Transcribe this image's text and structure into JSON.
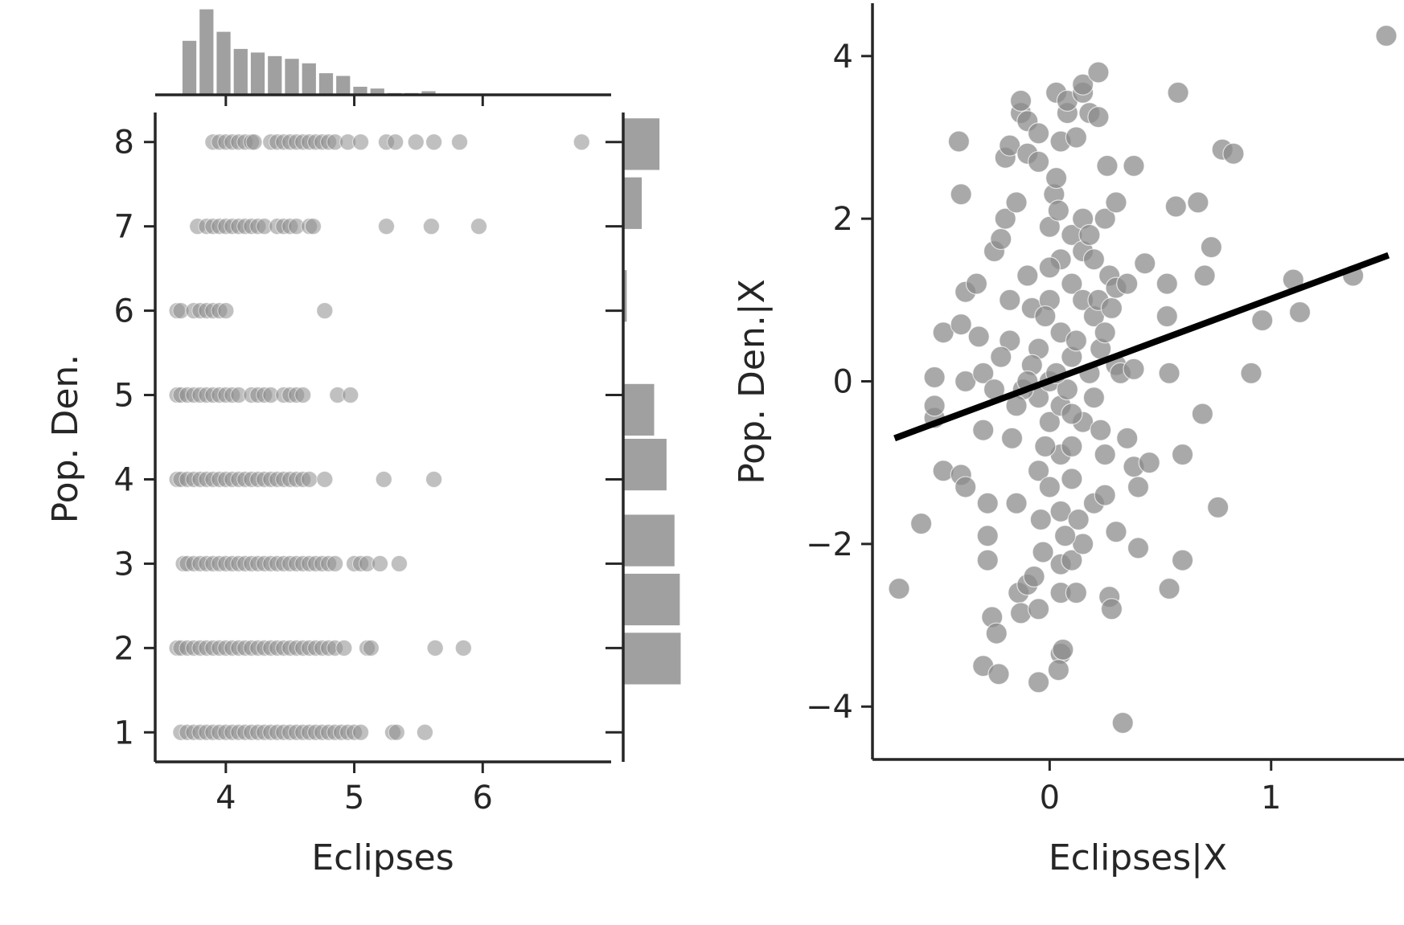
{
  "chart_data": [
    {
      "type": "scatter",
      "name": "joint-scatter",
      "xlabel": "Eclipses",
      "ylabel": "Pop. Den.",
      "xlim": [
        3.45,
        7.0
      ],
      "ylim": [
        0.65,
        8.35
      ],
      "xticks": [
        4,
        5,
        6
      ],
      "yticks": [
        1,
        2,
        3,
        4,
        5,
        6,
        7,
        8
      ],
      "point_color": "#8c8c8c",
      "rows": [
        {
          "y": 8,
          "x": [
            3.9,
            3.95,
            4.0,
            4.05,
            4.1,
            4.15,
            4.2,
            4.22,
            4.35,
            4.4,
            4.45,
            4.5,
            4.55,
            4.6,
            4.65,
            4.7,
            4.75,
            4.8,
            4.85,
            4.95,
            5.05,
            5.25,
            5.32,
            5.48,
            5.62,
            5.82,
            6.77
          ]
        },
        {
          "y": 7,
          "x": [
            3.78,
            3.85,
            3.9,
            3.95,
            4.0,
            4.05,
            4.1,
            4.15,
            4.2,
            4.25,
            4.3,
            4.4,
            4.45,
            4.5,
            4.55,
            4.65,
            4.68,
            5.25,
            5.6,
            5.97
          ]
        },
        {
          "y": 6,
          "x": [
            3.62,
            3.65,
            3.75,
            3.8,
            3.85,
            3.9,
            3.95,
            4.0,
            4.77
          ]
        },
        {
          "y": 5,
          "x": [
            3.62,
            3.65,
            3.7,
            3.75,
            3.8,
            3.85,
            3.9,
            3.95,
            4.0,
            4.05,
            4.1,
            4.2,
            4.25,
            4.3,
            4.35,
            4.45,
            4.5,
            4.55,
            4.6,
            4.87,
            4.97
          ]
        },
        {
          "y": 4,
          "x": [
            3.62,
            3.65,
            3.7,
            3.75,
            3.8,
            3.85,
            3.9,
            3.95,
            4.0,
            4.05,
            4.1,
            4.15,
            4.2,
            4.25,
            4.3,
            4.35,
            4.4,
            4.45,
            4.5,
            4.55,
            4.6,
            4.65,
            4.77,
            5.23,
            5.62
          ]
        },
        {
          "y": 3,
          "x": [
            3.67,
            3.7,
            3.75,
            3.8,
            3.85,
            3.9,
            3.95,
            4.0,
            4.05,
            4.1,
            4.15,
            4.2,
            4.25,
            4.3,
            4.35,
            4.4,
            4.45,
            4.5,
            4.55,
            4.6,
            4.65,
            4.7,
            4.75,
            4.8,
            4.85,
            5.0,
            5.05,
            5.1,
            5.2,
            5.35
          ]
        },
        {
          "y": 2,
          "x": [
            3.62,
            3.65,
            3.7,
            3.75,
            3.8,
            3.85,
            3.9,
            3.95,
            4.0,
            4.05,
            4.1,
            4.15,
            4.2,
            4.25,
            4.3,
            4.35,
            4.4,
            4.45,
            4.5,
            4.55,
            4.6,
            4.65,
            4.7,
            4.75,
            4.8,
            4.85,
            4.92,
            5.1,
            5.13,
            5.63,
            5.85
          ]
        },
        {
          "y": 1,
          "x": [
            3.65,
            3.7,
            3.75,
            3.8,
            3.85,
            3.9,
            3.95,
            4.0,
            4.05,
            4.1,
            4.15,
            4.2,
            4.25,
            4.3,
            4.35,
            4.4,
            4.45,
            4.5,
            4.55,
            4.6,
            4.65,
            4.7,
            4.75,
            4.8,
            4.85,
            4.9,
            4.95,
            5.0,
            5.05,
            5.3,
            5.33,
            5.55
          ]
        }
      ]
    },
    {
      "type": "bar",
      "name": "marginal-x-histogram",
      "orientation": "vertical",
      "bin_start": 3.65,
      "bin_width": 0.133,
      "counts": [
        60,
        95,
        70,
        51,
        47,
        43,
        40,
        35,
        24,
        21,
        9,
        7,
        2,
        2,
        4
      ],
      "color": "#a0a0a0"
    },
    {
      "type": "bar",
      "name": "marginal-y-histogram",
      "orientation": "horizontal",
      "bins": [
        {
          "from": 7.65,
          "to": 8.3,
          "count": 41
        },
        {
          "from": 6.95,
          "to": 7.6,
          "count": 21
        },
        {
          "from": 5.85,
          "to": 6.5,
          "count": 4
        },
        {
          "from": 4.5,
          "to": 5.15,
          "count": 35
        },
        {
          "from": 3.85,
          "to": 4.5,
          "count": 49
        },
        {
          "from": 2.95,
          "to": 3.6,
          "count": 58
        },
        {
          "from": 2.25,
          "to": 2.9,
          "count": 64
        },
        {
          "from": 1.55,
          "to": 2.2,
          "count": 65
        }
      ],
      "color": "#a0a0a0"
    },
    {
      "type": "scatter",
      "name": "partial-regression",
      "xlabel": "Eclipses|X",
      "ylabel": "Pop. Den.|X",
      "xlim": [
        -0.8,
        1.6
      ],
      "ylim": [
        -4.65,
        4.65
      ],
      "xticks": [
        0,
        1
      ],
      "yticks": [
        -4,
        -2,
        0,
        2,
        4
      ],
      "point_color": "#8c8c8c",
      "points": [
        [
          -0.68,
          -2.55
        ],
        [
          -0.58,
          -1.75
        ],
        [
          -0.48,
          -1.1
        ],
        [
          -0.52,
          -0.45
        ],
        [
          -0.52,
          -0.3
        ],
        [
          -0.52,
          0.05
        ],
        [
          -0.48,
          0.6
        ],
        [
          -0.41,
          2.95
        ],
        [
          -0.4,
          2.3
        ],
        [
          -0.38,
          1.1
        ],
        [
          -0.4,
          0.7
        ],
        [
          -0.38,
          0.0
        ],
        [
          -0.4,
          -1.15
        ],
        [
          -0.38,
          -1.3
        ],
        [
          -0.33,
          1.2
        ],
        [
          -0.32,
          0.55
        ],
        [
          -0.3,
          0.1
        ],
        [
          -0.3,
          -0.6
        ],
        [
          -0.28,
          -1.5
        ],
        [
          -0.28,
          -1.9
        ],
        [
          -0.28,
          -2.2
        ],
        [
          -0.26,
          -2.9
        ],
        [
          -0.24,
          -3.1
        ],
        [
          -0.3,
          -3.5
        ],
        [
          -0.23,
          -3.6
        ],
        [
          -0.25,
          1.6
        ],
        [
          -0.22,
          1.75
        ],
        [
          -0.2,
          2.0
        ],
        [
          -0.18,
          0.5
        ],
        [
          -0.17,
          -0.7
        ],
        [
          -0.15,
          -1.5
        ],
        [
          -0.14,
          -2.6
        ],
        [
          -0.13,
          -2.85
        ],
        [
          -0.1,
          -2.5
        ],
        [
          -0.05,
          -2.8
        ],
        [
          -0.05,
          -3.7
        ],
        [
          -0.2,
          2.75
        ],
        [
          -0.18,
          2.9
        ],
        [
          -0.15,
          2.2
        ],
        [
          -0.13,
          3.3
        ],
        [
          -0.13,
          3.45
        ],
        [
          -0.1,
          3.2
        ],
        [
          -0.1,
          2.8
        ],
        [
          -0.05,
          3.05
        ],
        [
          -0.05,
          2.7
        ],
        [
          -0.1,
          1.3
        ],
        [
          -0.08,
          0.9
        ],
        [
          -0.05,
          0.4
        ],
        [
          -0.05,
          -0.2
        ],
        [
          -0.05,
          -1.1
        ],
        [
          -0.04,
          -1.7
        ],
        [
          -0.03,
          -2.1
        ],
        [
          0.0,
          1.9
        ],
        [
          0.0,
          1.0
        ],
        [
          0.0,
          0.0
        ],
        [
          0.0,
          -0.5
        ],
        [
          0.0,
          -1.3
        ],
        [
          0.02,
          2.3
        ],
        [
          0.03,
          2.5
        ],
        [
          0.03,
          3.55
        ],
        [
          0.04,
          2.1
        ],
        [
          0.05,
          2.95
        ],
        [
          0.05,
          1.5
        ],
        [
          0.05,
          0.6
        ],
        [
          0.05,
          -0.3
        ],
        [
          0.05,
          -0.9
        ],
        [
          0.05,
          -1.6
        ],
        [
          0.05,
          -2.25
        ],
        [
          0.05,
          -2.6
        ],
        [
          0.05,
          -3.35
        ],
        [
          0.06,
          -3.3
        ],
        [
          0.04,
          -3.55
        ],
        [
          0.08,
          3.3
        ],
        [
          0.08,
          3.45
        ],
        [
          0.1,
          1.8
        ],
        [
          0.1,
          1.2
        ],
        [
          0.1,
          0.3
        ],
        [
          0.1,
          -0.8
        ],
        [
          0.1,
          -1.2
        ],
        [
          0.1,
          -2.2
        ],
        [
          0.12,
          -2.6
        ],
        [
          0.12,
          3.0
        ],
        [
          0.15,
          3.55
        ],
        [
          0.15,
          3.65
        ],
        [
          0.15,
          1.6
        ],
        [
          0.15,
          2.0
        ],
        [
          0.15,
          1.0
        ],
        [
          0.15,
          -0.5
        ],
        [
          0.15,
          -2.0
        ],
        [
          0.18,
          3.3
        ],
        [
          0.18,
          1.8
        ],
        [
          0.2,
          0.8
        ],
        [
          0.2,
          -0.2
        ],
        [
          0.2,
          -1.5
        ],
        [
          0.22,
          3.25
        ],
        [
          0.22,
          3.8
        ],
        [
          0.22,
          1.0
        ],
        [
          0.23,
          0.4
        ],
        [
          0.23,
          -0.6
        ],
        [
          0.25,
          2.0
        ],
        [
          0.25,
          -0.9
        ],
        [
          0.25,
          -1.4
        ],
        [
          0.26,
          2.65
        ],
        [
          0.27,
          1.3
        ],
        [
          0.27,
          -2.65
        ],
        [
          0.28,
          -2.8
        ],
        [
          0.28,
          0.9
        ],
        [
          0.3,
          2.2
        ],
        [
          0.3,
          1.15
        ],
        [
          0.3,
          0.2
        ],
        [
          0.3,
          -1.85
        ],
        [
          0.32,
          0.1
        ],
        [
          0.33,
          -4.2
        ],
        [
          0.35,
          1.2
        ],
        [
          0.35,
          -0.7
        ],
        [
          0.38,
          2.65
        ],
        [
          0.38,
          0.15
        ],
        [
          0.38,
          -1.05
        ],
        [
          0.4,
          -2.05
        ],
        [
          0.4,
          -1.3
        ],
        [
          0.43,
          1.45
        ],
        [
          0.45,
          -1.0
        ],
        [
          0.53,
          1.2
        ],
        [
          0.53,
          0.8
        ],
        [
          0.54,
          0.1
        ],
        [
          0.54,
          -2.55
        ],
        [
          0.58,
          3.55
        ],
        [
          0.57,
          2.15
        ],
        [
          0.6,
          -0.9
        ],
        [
          0.6,
          -2.2
        ],
        [
          0.67,
          2.2
        ],
        [
          0.69,
          -0.4
        ],
        [
          0.7,
          1.3
        ],
        [
          0.73,
          1.65
        ],
        [
          0.76,
          -1.55
        ],
        [
          0.78,
          2.85
        ],
        [
          0.83,
          2.8
        ],
        [
          0.91,
          0.1
        ],
        [
          0.96,
          0.75
        ],
        [
          1.1,
          1.25
        ],
        [
          1.13,
          0.85
        ],
        [
          1.37,
          1.3
        ],
        [
          1.52,
          4.25
        ],
        [
          -0.12,
          -0.1
        ],
        [
          -0.08,
          0.2
        ],
        [
          -0.02,
          0.8
        ],
        [
          0.08,
          -0.1
        ],
        [
          0.12,
          0.5
        ],
        [
          -0.22,
          0.3
        ],
        [
          -0.15,
          -0.3
        ],
        [
          0.18,
          0.1
        ],
        [
          0.0,
          1.4
        ],
        [
          0.07,
          -1.9
        ],
        [
          -0.07,
          -2.4
        ],
        [
          -0.25,
          -0.1
        ],
        [
          0.13,
          -1.7
        ],
        [
          0.2,
          1.5
        ],
        [
          -0.18,
          1.0
        ],
        [
          0.25,
          0.6
        ],
        [
          -0.02,
          -0.8
        ],
        [
          0.1,
          -0.4
        ],
        [
          -0.1,
          0.0
        ],
        [
          0.03,
          0.1
        ]
      ],
      "fit_line": {
        "x": [
          -0.7,
          1.53
        ],
        "y": [
          -0.7,
          1.55
        ],
        "color": "#000000"
      }
    }
  ]
}
